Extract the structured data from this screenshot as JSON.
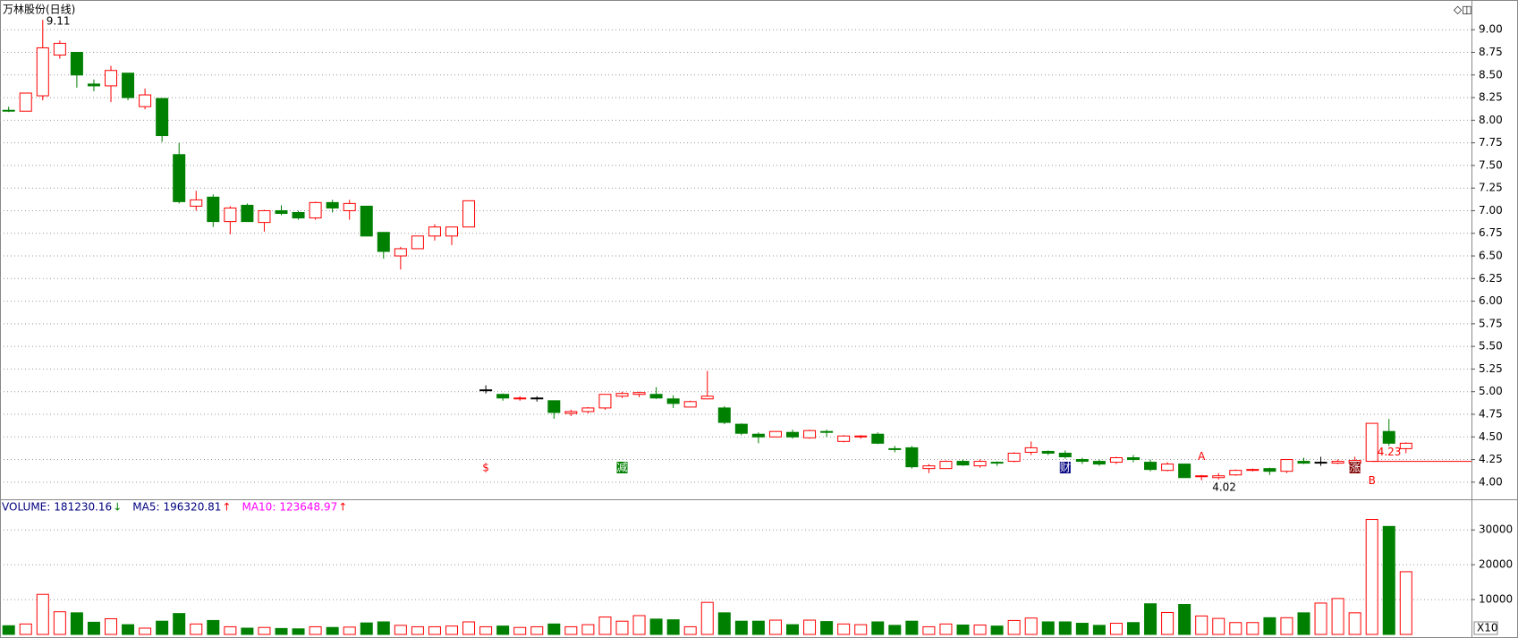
{
  "chart_data": [
    {
      "type": "candlestick",
      "title": "万林股份(日线)",
      "open": [
        8.11,
        8.1,
        8.27,
        8.72,
        8.75,
        8.4,
        8.38,
        8.52,
        8.15,
        8.24,
        7.62,
        7.05,
        7.15,
        6.88,
        7.06,
        6.87,
        7.0,
        6.98,
        6.92,
        7.09,
        7.0,
        7.05,
        6.76,
        6.5,
        6.58,
        6.72,
        6.72,
        6.82,
        5.02,
        4.97,
        4.92,
        4.93,
        4.9,
        4.76,
        4.78,
        4.82,
        4.95,
        4.97,
        4.97,
        4.92,
        4.83,
        4.92,
        4.82,
        4.64,
        4.53,
        4.5,
        4.55,
        4.49,
        4.56,
        4.45,
        4.5,
        4.53,
        4.37,
        4.38,
        4.15,
        4.15,
        4.23,
        4.18,
        4.22,
        4.23,
        4.33,
        4.34,
        4.32,
        4.25,
        4.23,
        4.22,
        4.27,
        4.22,
        4.13,
        4.2,
        4.06,
        4.05,
        4.08,
        4.13,
        4.15,
        4.12,
        4.23,
        4.22,
        4.21,
        4.21,
        4.23,
        4.56,
        4.37
      ],
      "high": [
        8.15,
        8.3,
        9.11,
        8.88,
        8.75,
        8.45,
        8.6,
        8.52,
        8.35,
        8.24,
        7.75,
        7.22,
        7.18,
        7.05,
        7.08,
        7.01,
        7.06,
        7.0,
        7.1,
        7.12,
        7.12,
        7.05,
        6.76,
        6.6,
        6.72,
        6.85,
        6.82,
        7.11,
        5.07,
        4.98,
        4.95,
        4.95,
        4.9,
        4.8,
        4.83,
        4.97,
        5.0,
        5.0,
        5.05,
        4.96,
        4.9,
        5.23,
        4.84,
        4.65,
        4.55,
        4.56,
        4.58,
        4.58,
        4.58,
        4.52,
        4.52,
        4.55,
        4.4,
        4.4,
        4.2,
        4.24,
        4.25,
        4.25,
        4.23,
        4.33,
        4.45,
        4.35,
        4.35,
        4.27,
        4.25,
        4.28,
        4.3,
        4.25,
        4.22,
        4.2,
        4.08,
        4.1,
        4.14,
        4.15,
        4.16,
        4.25,
        4.27,
        4.28,
        4.25,
        4.28,
        4.65,
        4.7,
        4.44
      ],
      "low": [
        8.09,
        8.1,
        8.22,
        8.68,
        8.36,
        8.32,
        8.2,
        8.22,
        8.12,
        7.76,
        7.08,
        7.0,
        6.82,
        6.74,
        6.88,
        6.77,
        6.95,
        6.9,
        6.9,
        6.98,
        6.9,
        6.72,
        6.47,
        6.35,
        6.58,
        6.67,
        6.62,
        6.82,
        4.98,
        4.9,
        4.9,
        4.89,
        4.7,
        4.73,
        4.76,
        4.8,
        4.93,
        4.94,
        4.92,
        4.82,
        4.83,
        4.92,
        4.64,
        4.52,
        4.43,
        4.5,
        4.48,
        4.48,
        4.5,
        4.44,
        4.48,
        4.42,
        4.33,
        4.15,
        4.1,
        4.15,
        4.18,
        4.16,
        4.18,
        4.22,
        4.3,
        4.3,
        4.26,
        4.2,
        4.18,
        4.2,
        4.22,
        4.12,
        4.12,
        4.05,
        4.02,
        4.03,
        4.07,
        4.12,
        4.08,
        4.1,
        4.2,
        4.18,
        4.2,
        4.19,
        4.23,
        4.4,
        4.32
      ],
      "close": [
        8.1,
        8.3,
        8.8,
        8.85,
        8.5,
        8.38,
        8.55,
        8.25,
        8.28,
        7.83,
        7.1,
        7.12,
        6.88,
        7.03,
        6.88,
        7.0,
        6.97,
        6.92,
        7.09,
        7.03,
        7.08,
        6.72,
        6.55,
        6.58,
        6.72,
        6.82,
        6.82,
        7.11,
        5.02,
        4.93,
        4.93,
        4.93,
        4.77,
        4.78,
        4.82,
        4.97,
        4.98,
        4.99,
        4.93,
        4.87,
        4.89,
        4.95,
        4.66,
        4.54,
        4.5,
        4.56,
        4.5,
        4.57,
        4.55,
        4.51,
        4.51,
        4.43,
        4.36,
        4.17,
        4.18,
        4.23,
        4.19,
        4.23,
        4.21,
        4.32,
        4.38,
        4.32,
        4.28,
        4.23,
        4.2,
        4.27,
        4.25,
        4.14,
        4.2,
        4.05,
        4.07,
        4.07,
        4.13,
        4.14,
        4.12,
        4.25,
        4.21,
        4.22,
        4.23,
        4.24,
        4.65,
        4.43,
        4.43
      ],
      "up_color": "#ff0000",
      "down_color": "#008000",
      "flat_color": "#000000",
      "ylim": [
        3.84,
        9.21
      ],
      "yticks": [
        {
          "value": 4.0,
          "label": "4.00"
        },
        {
          "value": 4.25,
          "label": "4.25"
        },
        {
          "value": 4.5,
          "label": "4.50"
        },
        {
          "value": 4.75,
          "label": "4.75"
        },
        {
          "value": 5.0,
          "label": "5.00"
        },
        {
          "value": 5.25,
          "label": "5.25"
        },
        {
          "value": 5.5,
          "label": "5.50"
        },
        {
          "value": 5.75,
          "label": "5.75"
        },
        {
          "value": 6.0,
          "label": "6.00"
        },
        {
          "value": 6.25,
          "label": "6.25"
        },
        {
          "value": 6.5,
          "label": "6.50"
        },
        {
          "value": 6.75,
          "label": "6.75"
        },
        {
          "value": 7.0,
          "label": "7.00"
        },
        {
          "value": 7.25,
          "label": "7.25"
        },
        {
          "value": 7.5,
          "label": "7.50"
        },
        {
          "value": 7.75,
          "label": "7.75"
        },
        {
          "value": 8.0,
          "label": "8.00"
        },
        {
          "value": 8.25,
          "label": "8.25"
        },
        {
          "value": 8.5,
          "label": "8.50"
        },
        {
          "value": 8.75,
          "label": "8.75"
        },
        {
          "value": 9.0,
          "label": "9.00"
        }
      ],
      "grid": true,
      "max_label": {
        "value": 9.11,
        "label": "9.11"
      },
      "min_label": {
        "value": 4.02,
        "label": "4.02"
      },
      "reference_line": {
        "value": 4.23,
        "label": "4.23",
        "color": "#ff0000"
      },
      "point_labels": [
        {
          "label": "A",
          "index": 70
        },
        {
          "label": "B",
          "index": 80
        }
      ],
      "events": [
        {
          "label": "$",
          "index": 28,
          "color": "#ff0000"
        },
        {
          "label": "减",
          "index": 36,
          "color": "#008000"
        },
        {
          "label": "财",
          "index": 62,
          "color": "#000080"
        },
        {
          "label": "涨",
          "index": 79,
          "color": "#800000"
        }
      ]
    },
    {
      "type": "bar",
      "values": [
        2500,
        3000,
        11500,
        6500,
        6200,
        3500,
        4500,
        2800,
        1800,
        3800,
        6000,
        3000,
        4000,
        2200,
        1800,
        2000,
        1700,
        1600,
        2200,
        2000,
        2100,
        3300,
        3600,
        2600,
        2200,
        2200,
        2400,
        3600,
        2200,
        2400,
        2000,
        2200,
        3000,
        2200,
        2800,
        5000,
        3800,
        5400,
        4400,
        4200,
        2200,
        9200,
        6200,
        3800,
        3800,
        4100,
        2800,
        4100,
        3700,
        3000,
        2800,
        3600,
        2600,
        3800,
        2200,
        3000,
        2700,
        2700,
        2400,
        4000,
        4700,
        3600,
        3600,
        3200,
        2600,
        3200,
        3400,
        8800,
        6300,
        8600,
        5300,
        4600,
        3400,
        3400,
        4800,
        4800,
        6200,
        9000,
        10300,
        6200,
        33000,
        31000,
        18000
      ],
      "ylim": [
        0,
        37500
      ],
      "yticks": [
        10000,
        20000,
        30000
      ],
      "grid": true,
      "unit_label": "X10",
      "legend": [
        {
          "name": "VOLUME:",
          "value": 181230.16,
          "arrow": "↓",
          "color": "#000080",
          "arrow_color": "#008000"
        },
        {
          "name": "MA5:",
          "value": 196320.81,
          "arrow": "↑",
          "color": "#000080",
          "arrow_color": "#ff0000"
        },
        {
          "name": "MA10:",
          "value": 123648.97,
          "arrow": "↑",
          "color": "#ff00ff",
          "arrow_color": "#ff0000"
        }
      ]
    }
  ]
}
